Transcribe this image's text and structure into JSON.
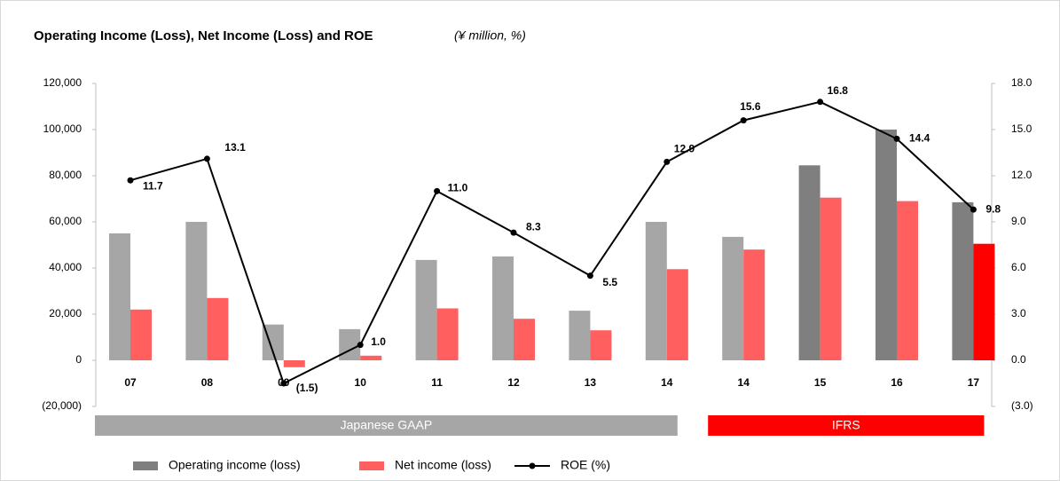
{
  "chart_data": {
    "type": "bar_line",
    "title": "Operating Income (Loss), Net Income (Loss) and ROE",
    "subtitle": "(¥ million, %)",
    "categories": [
      "07",
      "08",
      "09",
      "10",
      "11",
      "12",
      "13",
      "14",
      "14",
      "15",
      "16",
      "17"
    ],
    "series": [
      {
        "name": "Operating income (loss)",
        "type": "bar",
        "color": "#7f7f7f",
        "colors": [
          "#a6a6a6",
          "#a6a6a6",
          "#a6a6a6",
          "#a6a6a6",
          "#a6a6a6",
          "#a6a6a6",
          "#a6a6a6",
          "#a6a6a6",
          "#a6a6a6",
          "#7f7f7f",
          "#7f7f7f",
          "#7f7f7f"
        ],
        "values": [
          55000,
          60000,
          15500,
          13500,
          43500,
          45000,
          21500,
          60000,
          53500,
          84500,
          100000,
          68500
        ]
      },
      {
        "name": "Net income (loss)",
        "type": "bar",
        "color": "#ff5f5f",
        "colors": [
          "#ff5f5f",
          "#ff5f5f",
          "#ff5f5f",
          "#ff5f5f",
          "#ff5f5f",
          "#ff5f5f",
          "#ff5f5f",
          "#ff5f5f",
          "#ff5f5f",
          "#ff5f5f",
          "#ff5f5f",
          "#ff0000"
        ],
        "values": [
          22000,
          27000,
          -3000,
          2000,
          22500,
          18000,
          13000,
          39500,
          48000,
          70500,
          69000,
          50500
        ]
      },
      {
        "name": "ROE (%)",
        "type": "line",
        "axis": "y2",
        "color": "#000000",
        "values": [
          11.7,
          13.1,
          -1.5,
          1.0,
          11.0,
          8.3,
          5.5,
          12.9,
          15.6,
          16.8,
          14.4,
          9.8
        ],
        "value_labels": [
          "11.7",
          "13.1",
          "(1.5)",
          "1.0",
          "11.0",
          "8.3",
          "5.5",
          "12.9",
          "15.6",
          "16.8",
          "14.4",
          "9.8"
        ]
      }
    ],
    "ylim": [
      -20000,
      120000
    ],
    "yticks": [
      {
        "value": -20000,
        "label": "(20,000)"
      },
      0,
      {
        "value": 20000,
        "label": "20,000"
      },
      {
        "value": 40000,
        "label": "40,000"
      },
      {
        "value": 60000,
        "label": "60,000"
      },
      {
        "value": 80000,
        "label": "80,000"
      },
      {
        "value": 100000,
        "label": "100,000"
      },
      {
        "value": 120000,
        "label": "120,000"
      }
    ],
    "y2lim": [
      -3,
      18
    ],
    "y2ticks": [
      {
        "value": -3,
        "label": "(3.0)"
      },
      {
        "value": 0,
        "label": "0.0"
      },
      {
        "value": 3,
        "label": "3.0"
      },
      {
        "value": 6,
        "label": "6.0"
      },
      {
        "value": 9,
        "label": "9.0"
      },
      {
        "value": 12,
        "label": "12.0"
      },
      {
        "value": 15,
        "label": "15.0"
      },
      {
        "value": 18,
        "label": "18.0"
      }
    ],
    "grid": false,
    "groups": [
      {
        "label": "Japanese GAAP",
        "start": 0,
        "end": 7,
        "color": "#a6a6a6"
      },
      {
        "label": "IFRS",
        "start": 8,
        "end": 11,
        "color": "#ff0000"
      }
    ]
  }
}
